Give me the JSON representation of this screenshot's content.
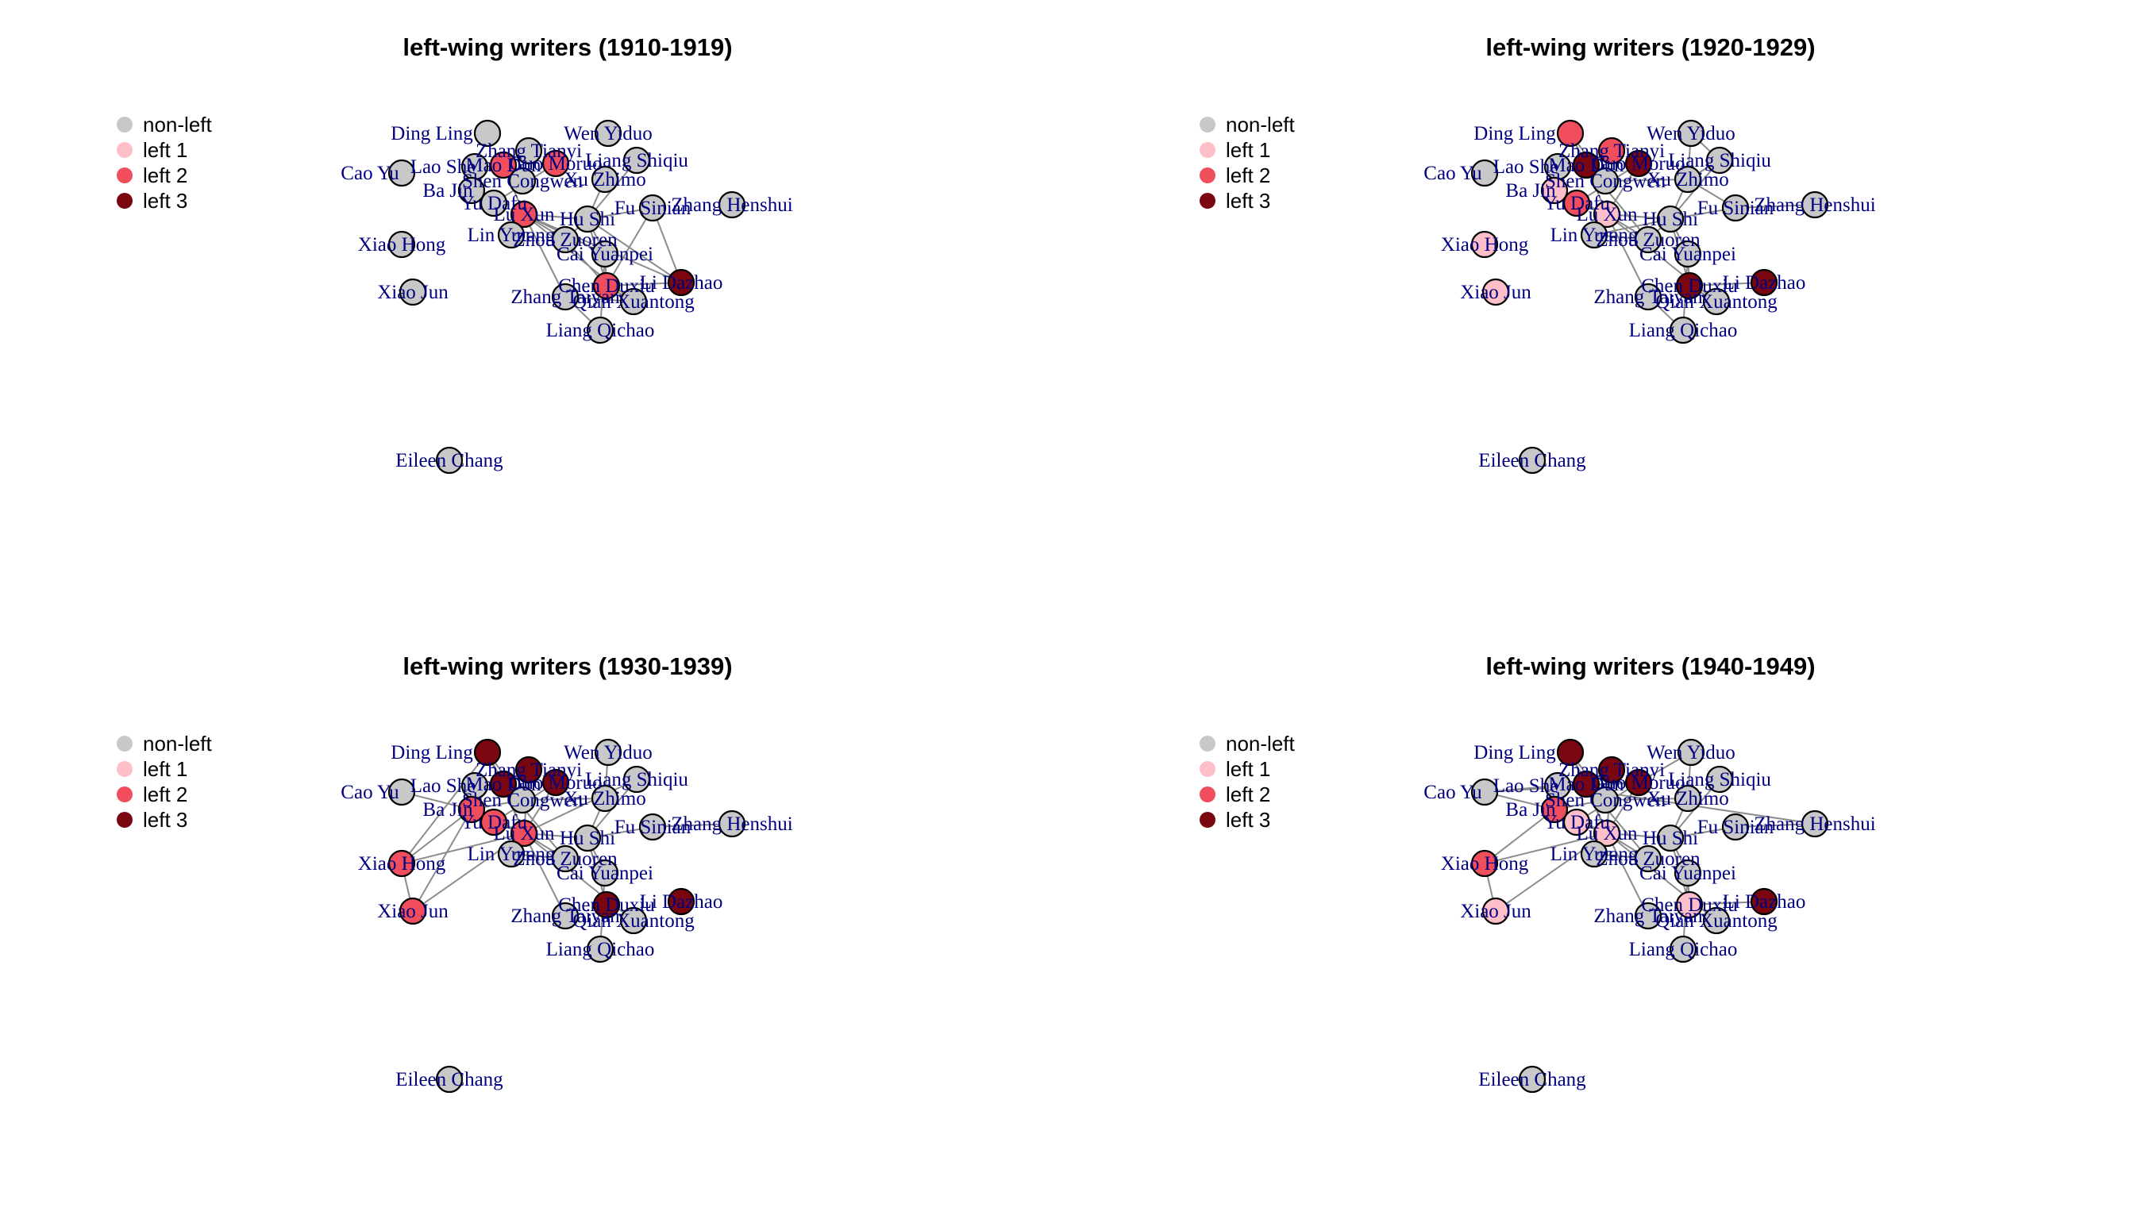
{
  "colors": {
    "non_left": "#c8c8c8",
    "left1": "#ffbfc8",
    "left2": "#f04e5c",
    "left3": "#7a0610",
    "label": "#000080",
    "edge": "#8c8c8c"
  },
  "legend": [
    {
      "key": "non_left",
      "label": "non-left"
    },
    {
      "key": "left1",
      "label": "left 1"
    },
    {
      "key": "left2",
      "label": "left 2"
    },
    {
      "key": "left3",
      "label": "left 3"
    }
  ],
  "nodes": [
    {
      "id": "ding_ling",
      "label": "Ding Ling"
    },
    {
      "id": "wen_yiduo",
      "label": "Wen Yiduo"
    },
    {
      "id": "zhang_tianyi",
      "label": "Zhang Tianyi"
    },
    {
      "id": "lao_she",
      "label": "Lao She"
    },
    {
      "id": "mao_dun",
      "label": "Mao Dun"
    },
    {
      "id": "guo_moruo",
      "label": "Guo Moruo"
    },
    {
      "id": "liang_shiqiu",
      "label": "Liang Shiqiu"
    },
    {
      "id": "cao_yu",
      "label": "Cao Yu"
    },
    {
      "id": "shen_congwen",
      "label": "Shen Congwen"
    },
    {
      "id": "xu_zhimo",
      "label": "Xu Zhimo"
    },
    {
      "id": "ba_jin",
      "label": "Ba Jin"
    },
    {
      "id": "yu_dafu",
      "label": "Yu Dafu"
    },
    {
      "id": "zhang_henshui",
      "label": "Zhang Henshui"
    },
    {
      "id": "fu_sinian",
      "label": "Fu Sinian"
    },
    {
      "id": "lu_xun",
      "label": "Lu Xun"
    },
    {
      "id": "hu_shi",
      "label": "Hu Shi"
    },
    {
      "id": "lin_yutang",
      "label": "Lin Yutang"
    },
    {
      "id": "zhou_zuoren",
      "label": "Zhou Zuoren"
    },
    {
      "id": "xiao_hong",
      "label": "Xiao Hong"
    },
    {
      "id": "cai_yuanpei",
      "label": "Cai Yuanpei"
    },
    {
      "id": "xiao_jun",
      "label": "Xiao Jun"
    },
    {
      "id": "li_dazhao",
      "label": "Li Dazhao"
    },
    {
      "id": "chen_duxiu",
      "label": "Chen Duxiu"
    },
    {
      "id": "zhang_taiyan",
      "label": "Zhang Taiyan"
    },
    {
      "id": "qian_xuantong",
      "label": "Qian Xuantong"
    },
    {
      "id": "liang_qichao",
      "label": "Liang Qichao"
    },
    {
      "id": "eileen_chang",
      "label": "Eileen Chang"
    }
  ],
  "panels": [
    {
      "title": "left-wing writers (1910-1919)",
      "status": {
        "ding_ling": "non_left",
        "wen_yiduo": "non_left",
        "zhang_tianyi": "non_left",
        "lao_she": "non_left",
        "mao_dun": "left2",
        "guo_moruo": "left2",
        "liang_shiqiu": "non_left",
        "cao_yu": "non_left",
        "shen_congwen": "non_left",
        "xu_zhimo": "non_left",
        "ba_jin": "non_left",
        "yu_dafu": "non_left",
        "zhang_henshui": "non_left",
        "fu_sinian": "non_left",
        "lu_xun": "left2",
        "hu_shi": "non_left",
        "lin_yutang": "non_left",
        "zhou_zuoren": "non_left",
        "xiao_hong": "non_left",
        "cai_yuanpei": "non_left",
        "xiao_jun": "non_left",
        "li_dazhao": "left3",
        "chen_duxiu": "left2",
        "zhang_taiyan": "non_left",
        "qian_xuantong": "non_left",
        "liang_qichao": "non_left",
        "eileen_chang": "non_left"
      },
      "edges": [
        [
          "lu_xun",
          "zhou_zuoren"
        ],
        [
          "lu_xun",
          "hu_shi"
        ],
        [
          "hu_shi",
          "chen_duxiu"
        ],
        [
          "chen_duxiu",
          "li_dazhao"
        ],
        [
          "cai_yuanpei",
          "chen_duxiu"
        ],
        [
          "cai_yuanpei",
          "hu_shi"
        ],
        [
          "qian_xuantong",
          "lu_xun"
        ],
        [
          "qian_xuantong",
          "chen_duxiu"
        ],
        [
          "zhang_taiyan",
          "lu_xun"
        ],
        [
          "zhang_taiyan",
          "qian_xuantong"
        ],
        [
          "liang_qichao",
          "zhang_taiyan"
        ],
        [
          "liang_qichao",
          "cai_yuanpei"
        ],
        [
          "fu_sinian",
          "hu_shi"
        ],
        [
          "fu_sinian",
          "chen_duxiu"
        ],
        [
          "zhou_zuoren",
          "hu_shi"
        ],
        [
          "guo_moruo",
          "yu_dafu"
        ],
        [
          "mao_dun",
          "lu_xun"
        ],
        [
          "xu_zhimo",
          "hu_shi"
        ],
        [
          "liang_shiqiu",
          "hu_shi"
        ],
        [
          "li_dazhao",
          "hu_shi"
        ],
        [
          "li_dazhao",
          "lu_xun"
        ],
        [
          "cai_yuanpei",
          "lu_xun"
        ],
        [
          "zhou_zuoren",
          "chen_duxiu"
        ],
        [
          "fu_sinian",
          "li_dazhao"
        ]
      ]
    },
    {
      "title": "left-wing writers (1920-1929)",
      "status": {
        "ding_ling": "left2",
        "wen_yiduo": "non_left",
        "zhang_tianyi": "left2",
        "lao_she": "non_left",
        "mao_dun": "left3",
        "guo_moruo": "left3",
        "liang_shiqiu": "non_left",
        "cao_yu": "non_left",
        "shen_congwen": "non_left",
        "xu_zhimo": "non_left",
        "ba_jin": "left1",
        "yu_dafu": "left2",
        "zhang_henshui": "non_left",
        "fu_sinian": "non_left",
        "lu_xun": "left1",
        "hu_shi": "non_left",
        "lin_yutang": "non_left",
        "zhou_zuoren": "non_left",
        "xiao_hong": "left1",
        "cai_yuanpei": "non_left",
        "xiao_jun": "left1",
        "li_dazhao": "left3",
        "chen_duxiu": "left3",
        "zhang_taiyan": "non_left",
        "qian_xuantong": "non_left",
        "liang_qichao": "non_left",
        "eileen_chang": "non_left"
      },
      "edges": [
        [
          "lu_xun",
          "zhou_zuoren"
        ],
        [
          "lu_xun",
          "hu_shi"
        ],
        [
          "hu_shi",
          "chen_duxiu"
        ],
        [
          "chen_duxiu",
          "li_dazhao"
        ],
        [
          "cai_yuanpei",
          "chen_duxiu"
        ],
        [
          "cai_yuanpei",
          "hu_shi"
        ],
        [
          "qian_xuantong",
          "lu_xun"
        ],
        [
          "qian_xuantong",
          "chen_duxiu"
        ],
        [
          "zhang_taiyan",
          "lu_xun"
        ],
        [
          "liang_qichao",
          "zhang_taiyan"
        ],
        [
          "liang_qichao",
          "cai_yuanpei"
        ],
        [
          "fu_sinian",
          "hu_shi"
        ],
        [
          "zhou_zuoren",
          "hu_shi"
        ],
        [
          "guo_moruo",
          "yu_dafu"
        ],
        [
          "mao_dun",
          "lu_xun"
        ],
        [
          "xu_zhimo",
          "hu_shi"
        ],
        [
          "liang_shiqiu",
          "hu_shi"
        ],
        [
          "ding_ling",
          "shen_congwen"
        ],
        [
          "ding_ling",
          "mao_dun"
        ],
        [
          "xu_zhimo",
          "shen_congwen"
        ],
        [
          "xu_zhimo",
          "liang_shiqiu"
        ],
        [
          "wen_yiduo",
          "xu_zhimo"
        ],
        [
          "wen_yiduo",
          "liang_shiqiu"
        ],
        [
          "lao_she",
          "ba_jin"
        ],
        [
          "ba_jin",
          "lu_xun"
        ],
        [
          "yu_dafu",
          "lu_xun"
        ],
        [
          "lin_yutang",
          "lu_xun"
        ],
        [
          "lin_yutang",
          "zhou_zuoren"
        ],
        [
          "lin_yutang",
          "hu_shi"
        ],
        [
          "fu_sinian",
          "zhang_henshui"
        ],
        [
          "guo_moruo",
          "lu_xun"
        ],
        [
          "mao_dun",
          "zhou_zuoren"
        ],
        [
          "zhang_tianyi",
          "mao_dun"
        ],
        [
          "xu_zhimo",
          "fu_sinian"
        ]
      ]
    },
    {
      "title": "left-wing writers (1930-1939)",
      "status": {
        "ding_ling": "left3",
        "wen_yiduo": "non_left",
        "zhang_tianyi": "left3",
        "lao_she": "non_left",
        "mao_dun": "left3",
        "guo_moruo": "left3",
        "liang_shiqiu": "non_left",
        "cao_yu": "non_left",
        "shen_congwen": "non_left",
        "xu_zhimo": "non_left",
        "ba_jin": "left2",
        "yu_dafu": "left2",
        "zhang_henshui": "non_left",
        "fu_sinian": "non_left",
        "lu_xun": "left2",
        "hu_shi": "non_left",
        "lin_yutang": "non_left",
        "zhou_zuoren": "non_left",
        "xiao_hong": "left2",
        "cai_yuanpei": "non_left",
        "xiao_jun": "left2",
        "li_dazhao": "left3",
        "chen_duxiu": "left3",
        "zhang_taiyan": "non_left",
        "qian_xuantong": "non_left",
        "liang_qichao": "non_left",
        "eileen_chang": "non_left"
      },
      "edges": [
        [
          "lu_xun",
          "zhou_zuoren"
        ],
        [
          "lu_xun",
          "hu_shi"
        ],
        [
          "hu_shi",
          "chen_duxiu"
        ],
        [
          "cai_yuanpei",
          "hu_shi"
        ],
        [
          "qian_xuantong",
          "lu_xun"
        ],
        [
          "zhang_taiyan",
          "lu_xun"
        ],
        [
          "liang_qichao",
          "cai_yuanpei"
        ],
        [
          "fu_sinian",
          "hu_shi"
        ],
        [
          "guo_moruo",
          "yu_dafu"
        ],
        [
          "mao_dun",
          "lu_xun"
        ],
        [
          "xu_zhimo",
          "hu_shi"
        ],
        [
          "liang_shiqiu",
          "hu_shi"
        ],
        [
          "ding_ling",
          "shen_congwen"
        ],
        [
          "ding_ling",
          "mao_dun"
        ],
        [
          "ding_ling",
          "lu_xun"
        ],
        [
          "xu_zhimo",
          "shen_congwen"
        ],
        [
          "wen_yiduo",
          "xu_zhimo"
        ],
        [
          "lao_she",
          "ba_jin"
        ],
        [
          "ba_jin",
          "lu_xun"
        ],
        [
          "yu_dafu",
          "lu_xun"
        ],
        [
          "lin_yutang",
          "lu_xun"
        ],
        [
          "lin_yutang",
          "zhou_zuoren"
        ],
        [
          "fu_sinian",
          "zhang_henshui"
        ],
        [
          "guo_moruo",
          "lu_xun"
        ],
        [
          "zhang_tianyi",
          "lu_xun"
        ],
        [
          "zhang_tianyi",
          "mao_dun"
        ],
        [
          "xiao_hong",
          "lu_xun"
        ],
        [
          "xiao_jun",
          "lu_xun"
        ],
        [
          "xiao_hong",
          "xiao_jun"
        ],
        [
          "xiao_hong",
          "ba_jin"
        ],
        [
          "xiao_hong",
          "ding_ling"
        ],
        [
          "xiao_jun",
          "ba_jin"
        ],
        [
          "cao_yu",
          "ba_jin"
        ],
        [
          "shen_congwen",
          "ba_jin"
        ],
        [
          "lu_xun",
          "liang_shiqiu"
        ],
        [
          "lao_she",
          "mao_dun"
        ],
        [
          "mao_dun",
          "zhou_zuoren"
        ],
        [
          "hu_shi",
          "chen_duxiu"
        ]
      ]
    },
    {
      "title": "left-wing writers (1940-1949)",
      "status": {
        "ding_ling": "left3",
        "wen_yiduo": "non_left",
        "zhang_tianyi": "left3",
        "lao_she": "non_left",
        "mao_dun": "left3",
        "guo_moruo": "left3",
        "liang_shiqiu": "non_left",
        "cao_yu": "non_left",
        "shen_congwen": "non_left",
        "xu_zhimo": "non_left",
        "ba_jin": "left2",
        "yu_dafu": "left1",
        "zhang_henshui": "non_left",
        "fu_sinian": "non_left",
        "lu_xun": "left1",
        "hu_shi": "non_left",
        "lin_yutang": "non_left",
        "zhou_zuoren": "non_left",
        "xiao_hong": "left2",
        "cai_yuanpei": "non_left",
        "xiao_jun": "left1",
        "li_dazhao": "left3",
        "chen_duxiu": "left1",
        "zhang_taiyan": "non_left",
        "qian_xuantong": "non_left",
        "liang_qichao": "non_left",
        "eileen_chang": "non_left"
      },
      "edges": [
        [
          "lu_xun",
          "zhou_zuoren"
        ],
        [
          "lu_xun",
          "hu_shi"
        ],
        [
          "hu_shi",
          "chen_duxiu"
        ],
        [
          "cai_yuanpei",
          "hu_shi"
        ],
        [
          "qian_xuantong",
          "lu_xun"
        ],
        [
          "zhang_taiyan",
          "lu_xun"
        ],
        [
          "liang_qichao",
          "cai_yuanpei"
        ],
        [
          "fu_sinian",
          "hu_shi"
        ],
        [
          "guo_moruo",
          "yu_dafu"
        ],
        [
          "mao_dun",
          "lu_xun"
        ],
        [
          "xu_zhimo",
          "hu_shi"
        ],
        [
          "liang_shiqiu",
          "hu_shi"
        ],
        [
          "ding_ling",
          "shen_congwen"
        ],
        [
          "ding_ling",
          "mao_dun"
        ],
        [
          "ding_ling",
          "lu_xun"
        ],
        [
          "xu_zhimo",
          "shen_congwen"
        ],
        [
          "wen_yiduo",
          "xu_zhimo"
        ],
        [
          "lao_she",
          "ba_jin"
        ],
        [
          "ba_jin",
          "lu_xun"
        ],
        [
          "yu_dafu",
          "lu_xun"
        ],
        [
          "lin_yutang",
          "lu_xun"
        ],
        [
          "lin_yutang",
          "zhou_zuoren"
        ],
        [
          "fu_sinian",
          "zhang_henshui"
        ],
        [
          "guo_moruo",
          "lu_xun"
        ],
        [
          "zhang_tianyi",
          "lu_xun"
        ],
        [
          "zhang_tianyi",
          "mao_dun"
        ],
        [
          "xiao_hong",
          "lu_xun"
        ],
        [
          "xiao_jun",
          "lu_xun"
        ],
        [
          "xiao_hong",
          "xiao_jun"
        ],
        [
          "xiao_hong",
          "ba_jin"
        ],
        [
          "cao_yu",
          "ba_jin"
        ],
        [
          "cao_yu",
          "lao_she"
        ],
        [
          "cao_yu",
          "mao_dun"
        ],
        [
          "cao_yu",
          "guo_moruo"
        ],
        [
          "shen_congwen",
          "ba_jin"
        ],
        [
          "lao_she",
          "mao_dun"
        ],
        [
          "lao_she",
          "guo_moruo"
        ],
        [
          "wen_yiduo",
          "guo_moruo"
        ],
        [
          "mao_dun",
          "zhou_zuoren"
        ],
        [
          "li_dazhao",
          "chen_duxiu"
        ],
        [
          "chen_duxiu",
          "cai_yuanpei"
        ],
        [
          "zhang_henshui",
          "lao_she"
        ]
      ]
    }
  ]
}
